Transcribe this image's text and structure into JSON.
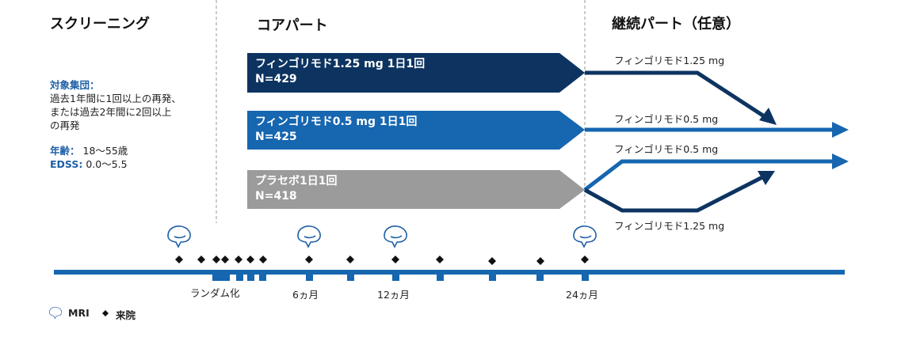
{
  "sections": {
    "screening": "スクリーニング",
    "core": "コアパート",
    "extension": "継続パート（任意）"
  },
  "criteria": {
    "population_label": "対象集団：",
    "population_lines": [
      "過去1年間に1回以上の再発、",
      "または過去2年間に2回以上",
      "の再発"
    ],
    "age_label": "年齢：",
    "age_value": "18〜55歳",
    "edss_label": "EDSS:",
    "edss_value": "0.0〜5.5"
  },
  "arms": [
    {
      "name": "フィンゴリモド1.25 mg 1日1回",
      "n": "N=429",
      "color": "#0d3461"
    },
    {
      "name": "フィンゴリモド0.5 mg 1日1回",
      "n": "N=425",
      "color": "#1666b0"
    },
    {
      "name": "プラセボ1日1回",
      "n": "N=418",
      "color": "#9b9b9b"
    }
  ],
  "extension_labels": {
    "arm1": "フィンゴリモド1.25 mg",
    "arm2": "フィンゴリモド0.5 mg",
    "placebo_to_low": "フィンゴリモド0.5 mg",
    "placebo_to_high": "フィンゴリモド1.25 mg"
  },
  "timeline": {
    "randomization": "ランダム化",
    "m6": "6ヵ月",
    "m12": "12ヵ月",
    "m24": "24ヵ月"
  },
  "legend": {
    "mri": "MRI",
    "visit": "来院"
  },
  "colors": {
    "dark_navy": "#0d3461",
    "mid_blue": "#1666b0",
    "gray": "#9b9b9b",
    "label_blue": "#1f5fa6"
  }
}
